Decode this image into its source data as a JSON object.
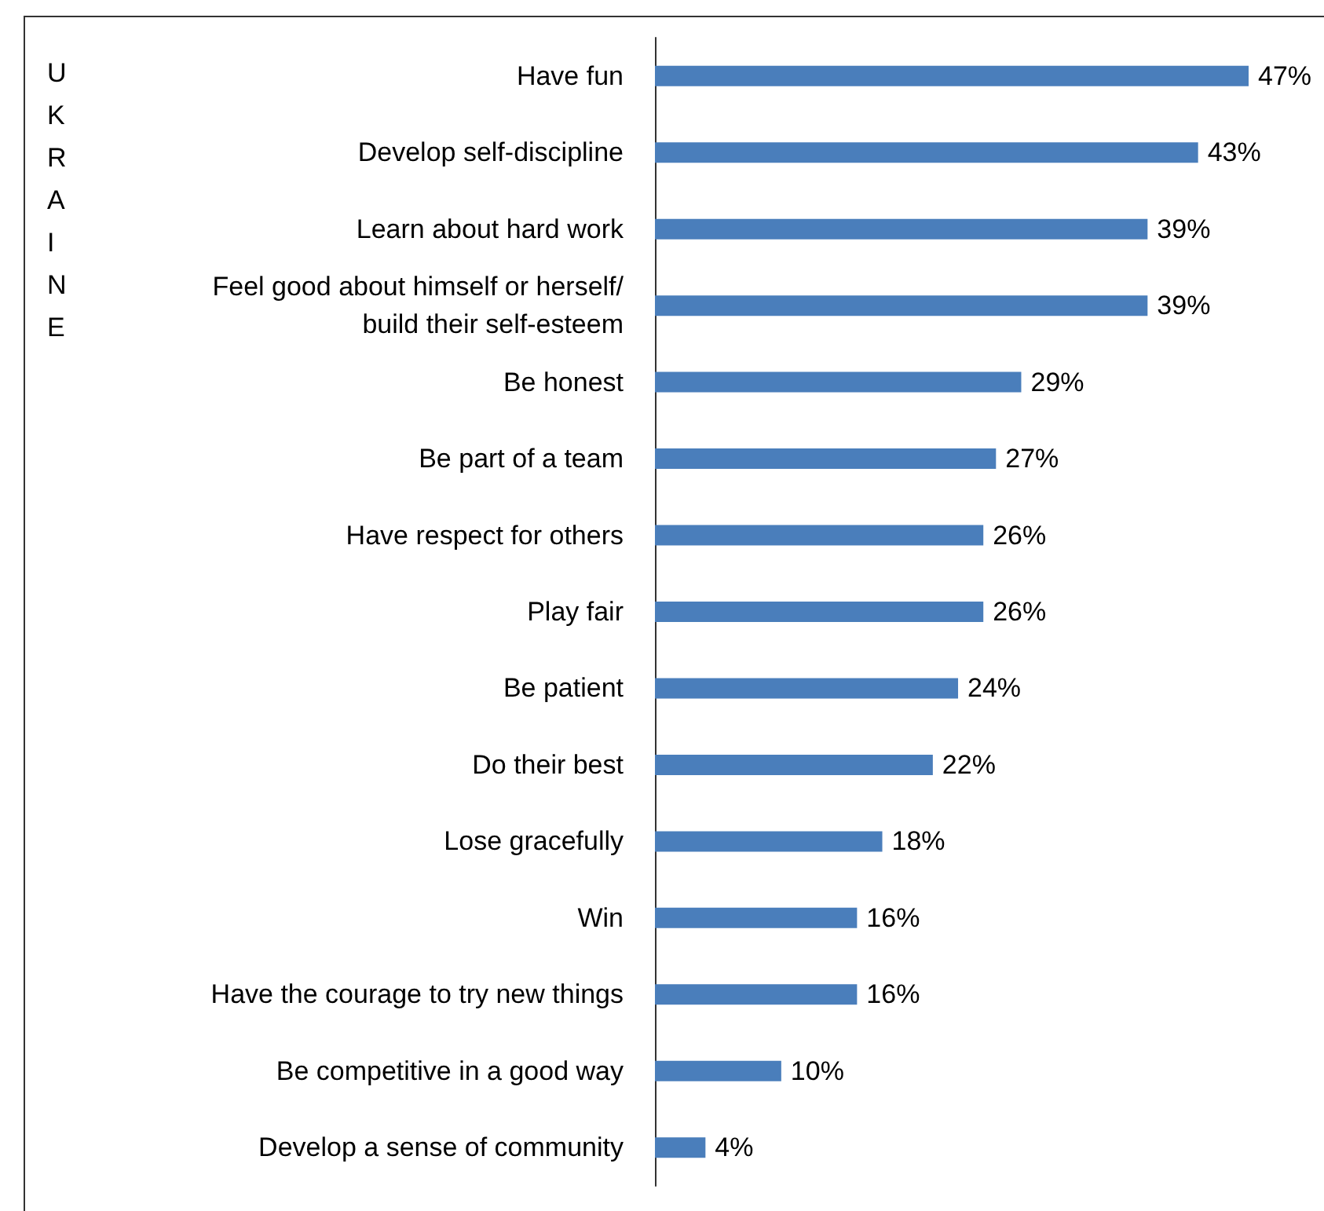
{
  "chart_data": {
    "type": "bar",
    "orientation": "horizontal",
    "annotations": [
      "UKRAINE"
    ],
    "categories": [
      "Have fun",
      "Develop self-discipline",
      "Learn about hard work",
      "Feel good about himself or herself/\nbuild their self-esteem",
      "Be honest",
      "Be part of a team",
      "Have respect for others",
      "Play fair",
      "Be patient",
      "Do their best",
      "Lose gracefully",
      "Win",
      "Have the courage to try new things",
      "Be competitive in a good way",
      "Develop a sense of community"
    ],
    "values": [
      47,
      43,
      39,
      39,
      29,
      27,
      26,
      26,
      24,
      22,
      18,
      16,
      16,
      10,
      4
    ],
    "value_labels": [
      "47%",
      "43%",
      "39%",
      "39%",
      "29%",
      "27%",
      "26%",
      "26%",
      "24%",
      "22%",
      "18%",
      "16%",
      "16%",
      "10%",
      "4%"
    ],
    "color": "#4a7ebb",
    "grid": false
  }
}
